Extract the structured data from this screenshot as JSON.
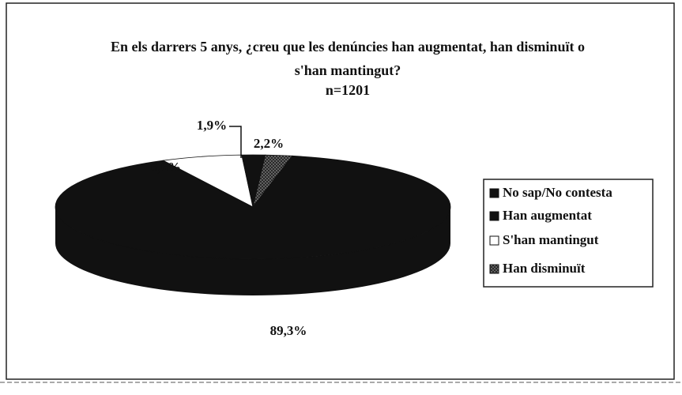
{
  "chart_data": {
    "type": "pie3d",
    "title": "En els darrers 5 anys, ¿creu que les denúncies han augmentat, han disminuït o s'han mantingut?",
    "subtitle": "n=1201",
    "categories": [
      "No sap/No contesta",
      "Han augmentat",
      "S'han mantingut",
      "Han disminuït"
    ],
    "values": [
      1.9,
      89.3,
      6.6,
      2.2
    ],
    "value_labels": [
      "1,9%",
      "89,3%",
      "6,6%",
      "2,2%"
    ],
    "colors": [
      "#111111",
      "#111111",
      "#ffffff",
      "#555555"
    ],
    "legend": "right"
  }
}
